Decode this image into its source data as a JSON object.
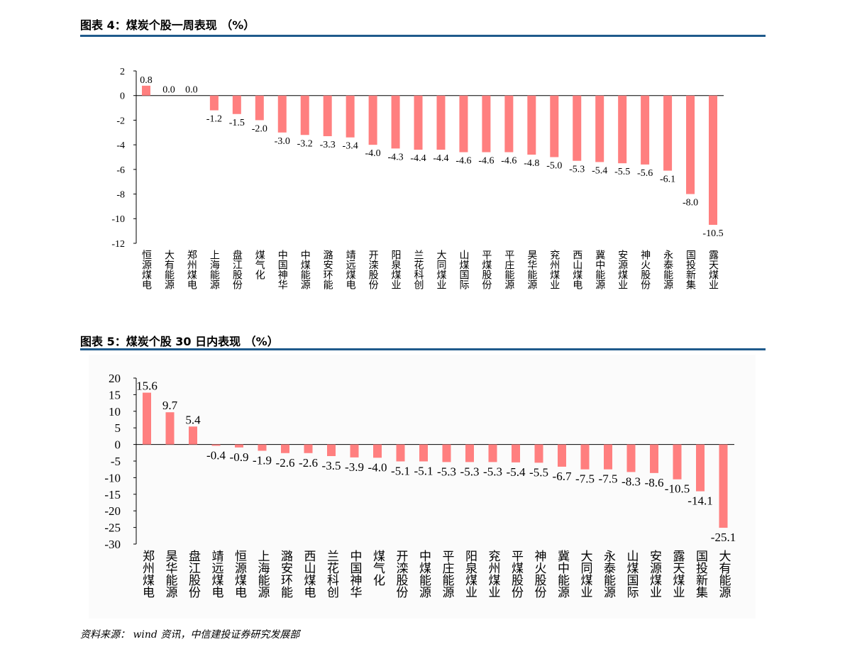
{
  "chart_data": [
    {
      "type": "bar",
      "title": "图表 4：煤炭个股一周表现 （%）",
      "xlabel": "",
      "ylabel": "",
      "ylim": [
        -12,
        2
      ],
      "yticks": [
        2,
        0,
        -2,
        -4,
        -6,
        -8,
        -10,
        -12
      ],
      "bar_color": "#ff7f7f",
      "categories": [
        "恒源煤电",
        "大有能源",
        "郑州煤电",
        "上海能源",
        "盘江股份",
        "煤气化",
        "中国神华",
        "中煤能源",
        "潞安环能",
        "靖远煤电",
        "开滦股份",
        "阳泉煤业",
        "兰花科创",
        "大同煤业",
        "山煤国际",
        "平煤股份",
        "平庄能源",
        "昊华能源",
        "兖州煤业",
        "西山煤电",
        "冀中能源",
        "安源煤业",
        "神火股份",
        "永泰能源",
        "国投新集",
        "露天煤业"
      ],
      "values": [
        0.8,
        0.0,
        0.0,
        -1.2,
        -1.5,
        -2.0,
        -3.0,
        -3.2,
        -3.3,
        -3.4,
        -4.0,
        -4.3,
        -4.4,
        -4.4,
        -4.6,
        -4.6,
        -4.6,
        -4.8,
        -5.0,
        -5.3,
        -5.4,
        -5.5,
        -5.6,
        -6.1,
        -8.0,
        -10.5
      ],
      "labels": [
        "0.8",
        "0.0",
        "0.0",
        "-1.2",
        "-1.5",
        "-2.0",
        "-3.0",
        "-3.2",
        "-3.3",
        "-3.4",
        "-4.0",
        "-4.3",
        "-4.4",
        "-4.4",
        "-4.6",
        "-4.6",
        "-4.6",
        "-4.8",
        "-5.0",
        "-5.3",
        "-5.4",
        "-5.5",
        "-5.6",
        "-6.1",
        "-8.0",
        "-10.5"
      ]
    },
    {
      "type": "bar",
      "title": "图表 5：煤炭个股 30 日内表现 （%）",
      "xlabel": "",
      "ylabel": "",
      "ylim": [
        -30,
        20
      ],
      "yticks": [
        20,
        15,
        10,
        5,
        0,
        -5,
        -10,
        -15,
        -20,
        -25,
        -30
      ],
      "bar_color": "#ff7f7f",
      "categories": [
        "郑州煤电",
        "昊华能源",
        "盘江股份",
        "靖远煤电",
        "恒源煤电",
        "上海能源",
        "潞安环能",
        "西山煤电",
        "兰花科创",
        "中国神华",
        "煤气化",
        "开滦股份",
        "中煤能源",
        "平庄能源",
        "阳泉煤业",
        "兖州煤业",
        "平煤股份",
        "神火股份",
        "冀中能源",
        "大同煤业",
        "永泰能源",
        "山煤国际",
        "安源煤业",
        "露天煤业",
        "国投新集",
        "大有能源"
      ],
      "values": [
        15.6,
        9.7,
        5.4,
        -0.4,
        -0.9,
        -1.9,
        -2.6,
        -2.6,
        -3.5,
        -3.9,
        -4.0,
        -5.1,
        -5.1,
        -5.3,
        -5.3,
        -5.3,
        -5.4,
        -5.5,
        -6.7,
        -7.5,
        -7.5,
        -8.3,
        -8.6,
        -10.5,
        -14.1,
        -25.1
      ],
      "labels": [
        "15.6",
        "9.7",
        "5.4",
        "-0.4",
        "-0.9",
        "-1.9",
        "-2.6",
        "-2.6",
        "-3.5",
        "-3.9",
        "-4.0",
        "-5.1",
        "-5.1",
        "-5.3",
        "-5.3",
        "-5.3",
        "-5.4",
        "-5.5",
        "-6.7",
        "-7.5",
        "-7.5",
        "-8.3",
        "-8.6",
        "-10.5",
        "-14.1",
        "-25.1"
      ]
    }
  ],
  "source": "资料来源： wind 资讯，中信建投证券研究发展部"
}
